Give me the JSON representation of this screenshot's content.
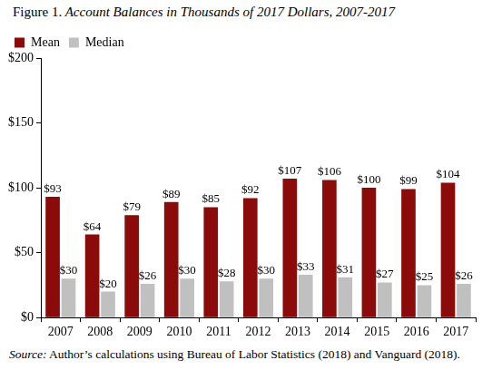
{
  "chart_data": {
    "type": "bar",
    "title": "Figure 1. Account Balances in Thousands of 2017 Dollars, 2007-2017",
    "source": "Source: Author’s calculations using Bureau of Labor Statistics (2018) and Vanguard (2018).",
    "categories": [
      "2007",
      "2008",
      "2009",
      "2010",
      "2011",
      "2012",
      "2013",
      "2014",
      "2015",
      "2016",
      "2017"
    ],
    "series": [
      {
        "name": "Mean",
        "color": "#8b0a0a",
        "values": [
          93,
          64,
          79,
          89,
          85,
          92,
          107,
          106,
          100,
          99,
          104
        ],
        "value_labels": [
          "$93",
          "$64",
          "$79",
          "$89",
          "$85",
          "$92",
          "$107",
          "$106",
          "$100",
          "$99",
          "$104"
        ]
      },
      {
        "name": "Median",
        "color": "#c0c0c0",
        "values": [
          30,
          20,
          26,
          30,
          28,
          30,
          33,
          31,
          27,
          25,
          26
        ],
        "value_labels": [
          "$30",
          "$20",
          "$26",
          "$30",
          "$28",
          "$30",
          "$33",
          "$31",
          "$27",
          "$25",
          "$26"
        ]
      }
    ],
    "ylim": [
      0,
      200
    ],
    "yticks": [
      {
        "value": 0,
        "label": "$0"
      },
      {
        "value": 50,
        "label": "$50"
      },
      {
        "value": 100,
        "label": "$100"
      },
      {
        "value": 150,
        "label": "$150"
      },
      {
        "value": 200,
        "label": "$200"
      }
    ],
    "grid": false,
    "legend": "top-left",
    "data_labels": true
  }
}
